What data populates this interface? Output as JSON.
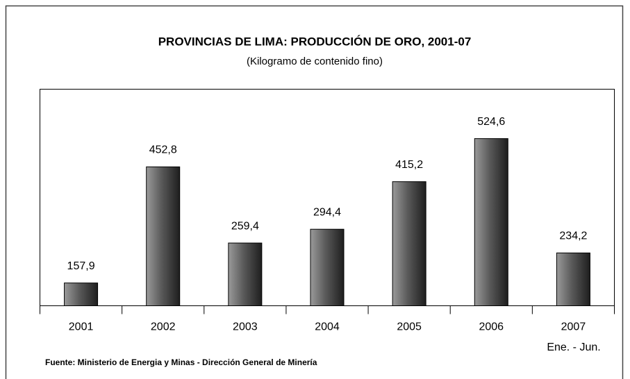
{
  "chart_data": {
    "type": "bar",
    "title": "PROVINCIAS DE LIMA: PRODUCCIÓN DE ORO, 2001-07",
    "subtitle": "(Kilogramo de contenido fino)",
    "categories": [
      "2001",
      "2002",
      "2003",
      "2004",
      "2005",
      "2006",
      "2007"
    ],
    "values": [
      157.9,
      452.8,
      259.4,
      294.4,
      415.2,
      524.6,
      234.2
    ],
    "value_labels": [
      "157,9",
      "452,8",
      "259,4",
      "294,4",
      "415,2",
      "524,6",
      "234,2"
    ],
    "annotations": [
      "Ene. - Jun."
    ],
    "source": "Fuente: Ministerio de Energia y Minas - Dirección General de Minería",
    "color": "#555555",
    "ylim": [
      100,
      650
    ]
  }
}
